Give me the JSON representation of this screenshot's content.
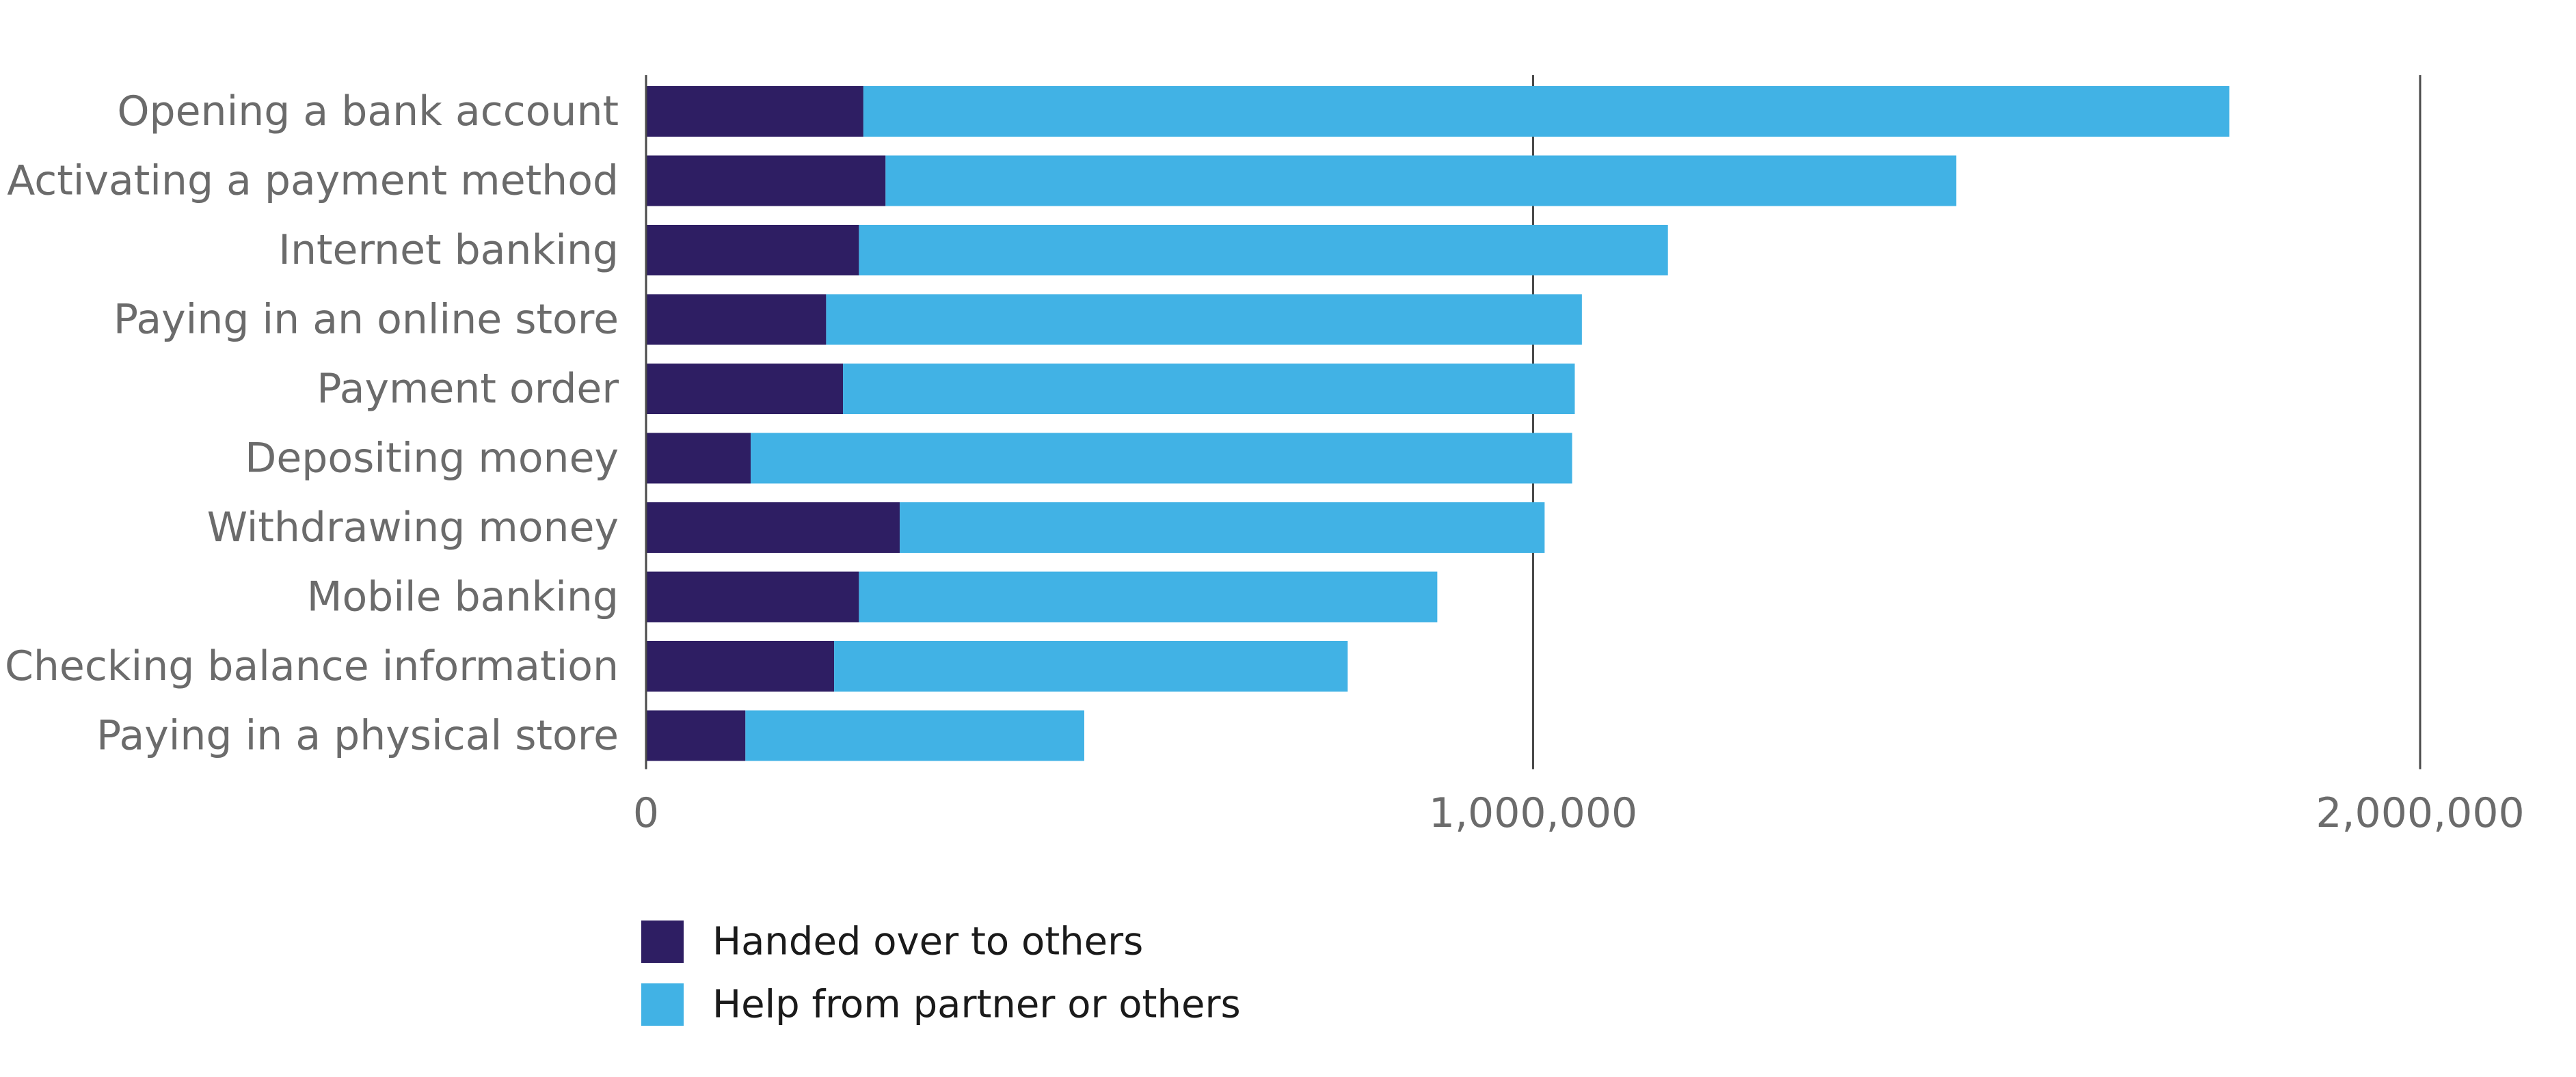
{
  "chart_data": {
    "type": "bar",
    "orientation": "horizontal",
    "stacked": true,
    "title": "",
    "xlabel": "",
    "ylabel": "",
    "categories": [
      "Opening a bank account",
      "Activating a payment method",
      "Internet banking",
      "Paying in an online store",
      "Payment order",
      "Depositing money",
      "Withdrawing money",
      "Mobile banking",
      "Checking balance information",
      "Paying in a physical store"
    ],
    "series": [
      {
        "name": "Handed over to others",
        "color": "#2e1e63",
        "values": [
          245000,
          270000,
          240000,
          203000,
          222000,
          118000,
          286000,
          240000,
          212000,
          112000
        ]
      },
      {
        "name": "Help from partner or others",
        "color": "#41b2e5",
        "values": [
          1540000,
          1207000,
          912000,
          852000,
          825000,
          926000,
          727000,
          652000,
          579000,
          382000
        ]
      }
    ],
    "xlim": [
      0,
      2000000
    ],
    "xticks": [
      0,
      1000000,
      2000000
    ],
    "xtick_labels": [
      "0",
      "1,000,000",
      "2,000,000"
    ],
    "grid": true,
    "legend_position": "bottom-left"
  }
}
